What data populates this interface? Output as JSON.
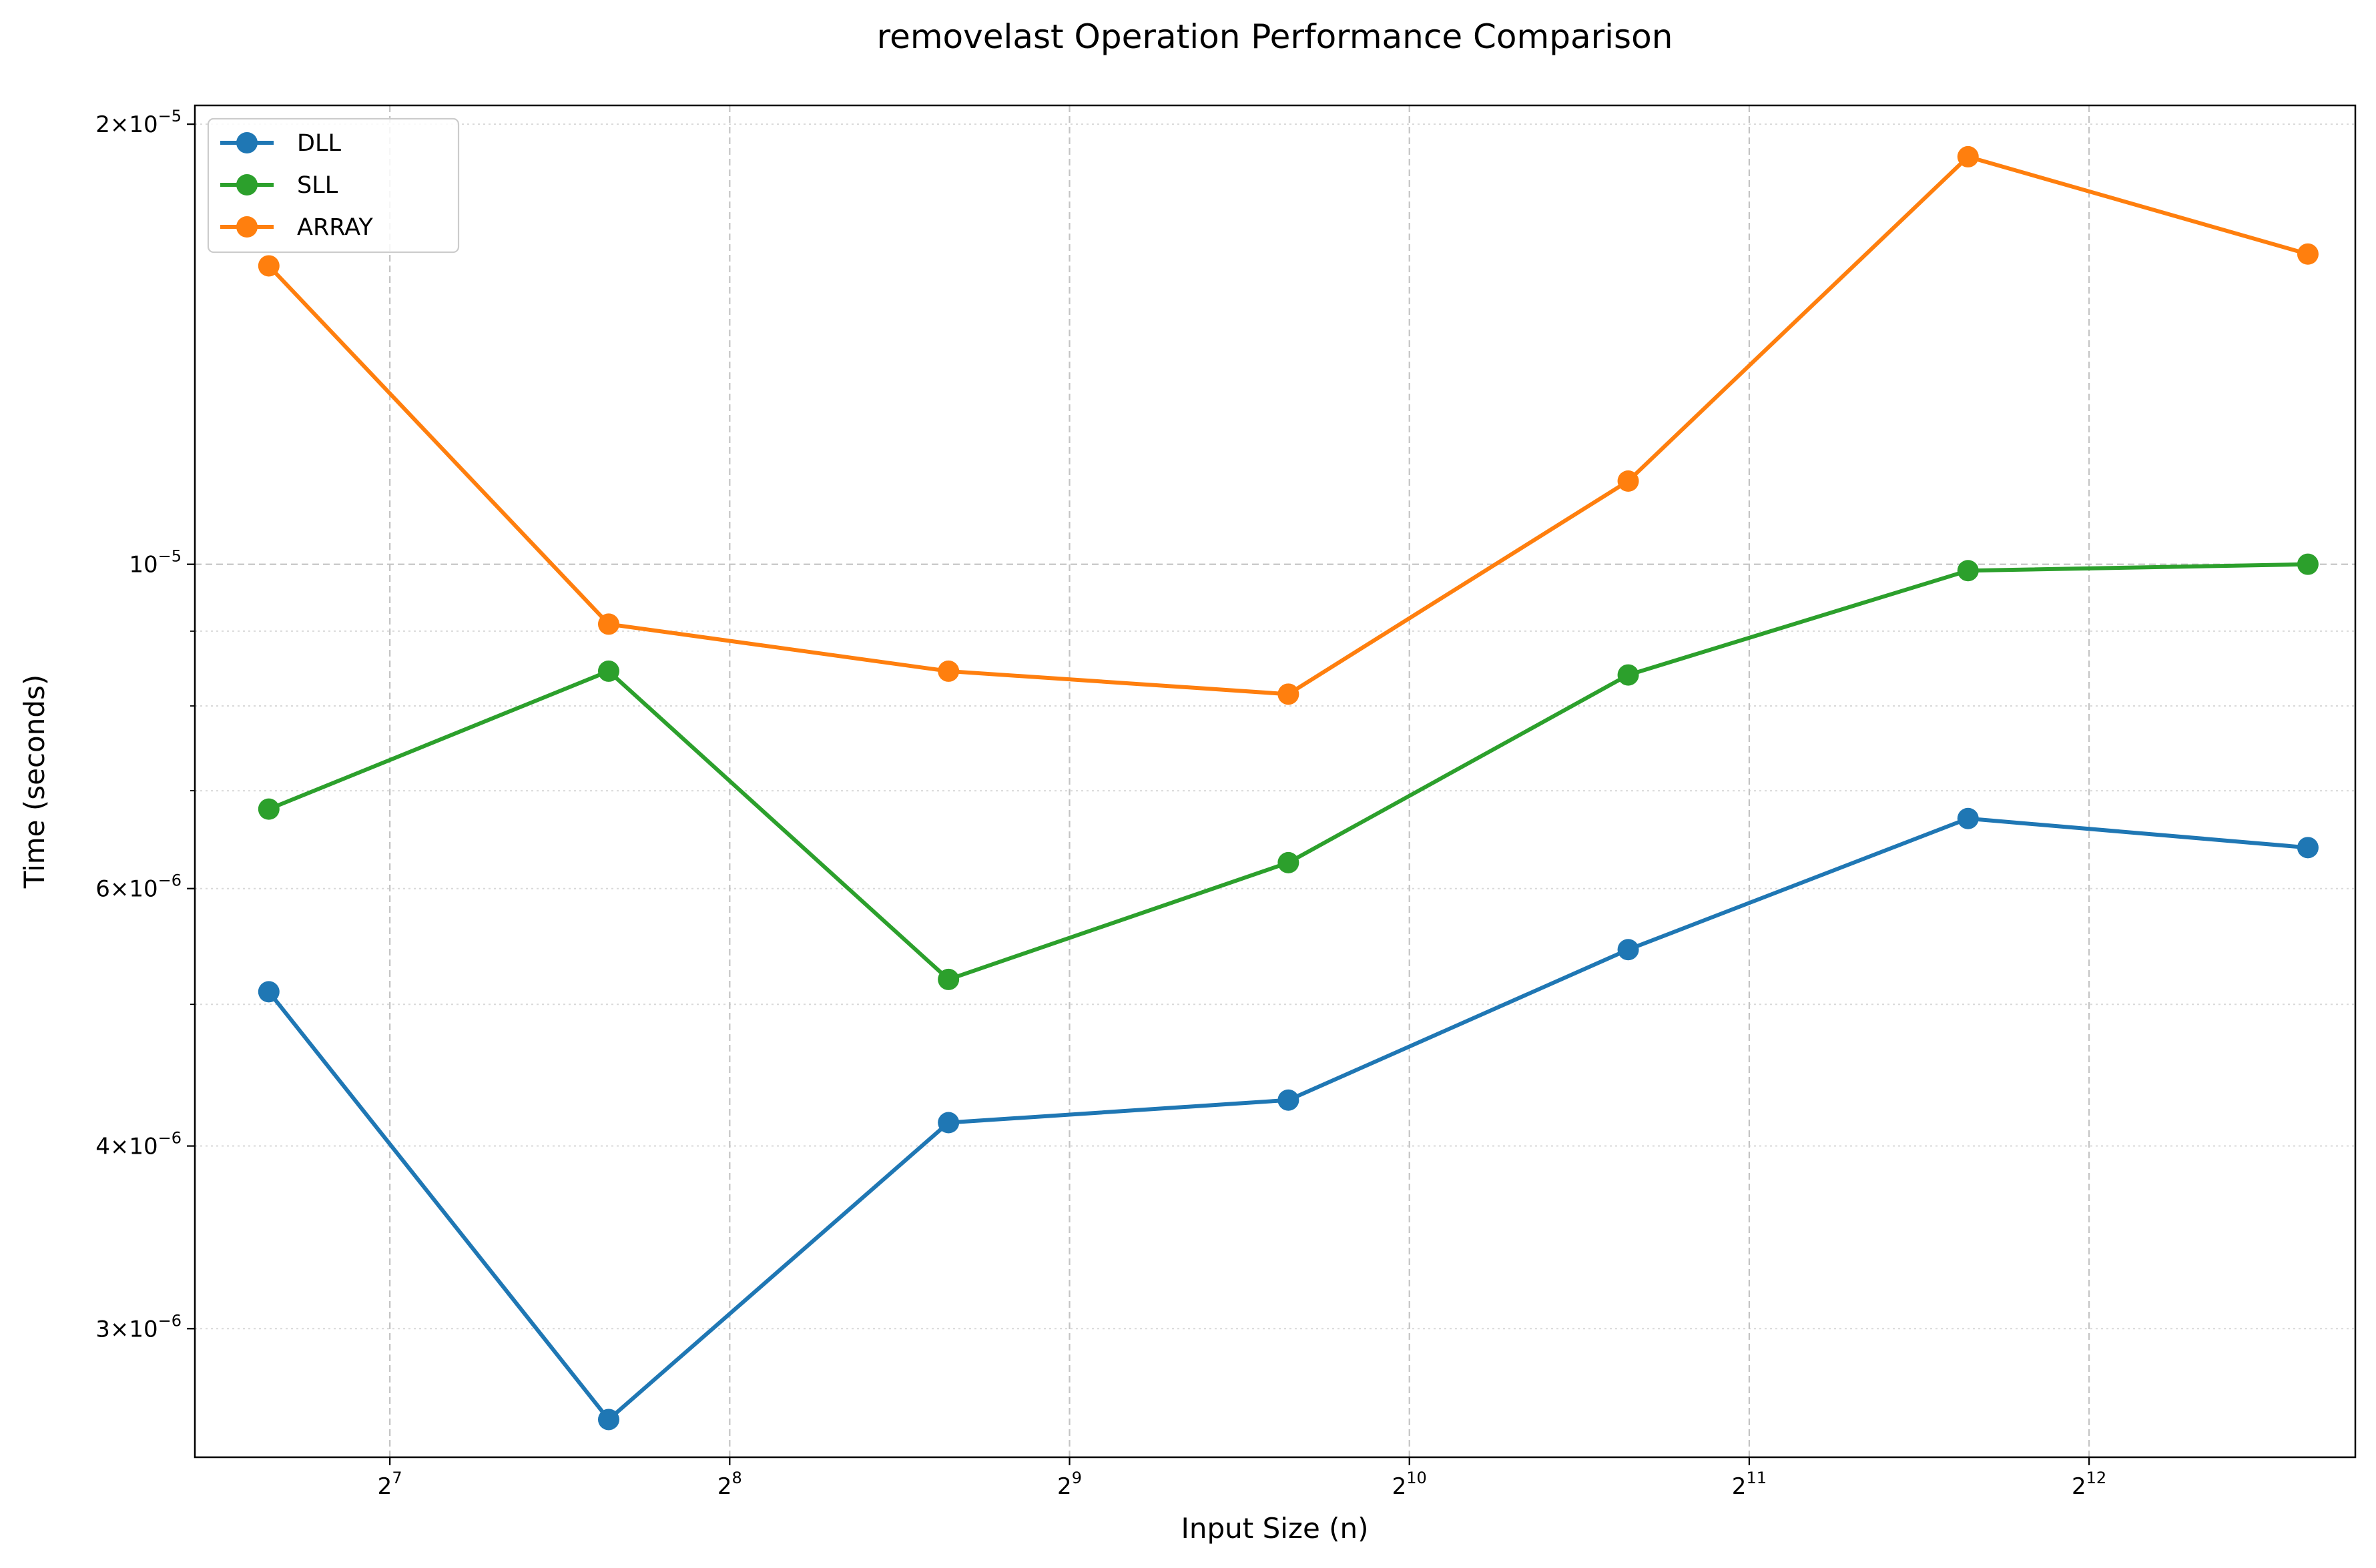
{
  "chart_data": {
    "type": "line",
    "title": "removelast Operation Performance Comparison",
    "xlabel": "Input Size (n)",
    "ylabel": "Time (seconds)",
    "xscale": "log2",
    "yscale": "log",
    "xlim": [
      86,
      7050
    ],
    "ylim": [
      2.45e-06,
      2.06e-05
    ],
    "x": [
      100,
      200,
      400,
      800,
      1600,
      3200,
      6400
    ],
    "x_ticks": [
      {
        "value": 128,
        "base": "2",
        "exp": "7"
      },
      {
        "value": 256,
        "base": "2",
        "exp": "8"
      },
      {
        "value": 512,
        "base": "2",
        "exp": "9"
      },
      {
        "value": 1024,
        "base": "2",
        "exp": "10"
      },
      {
        "value": 2048,
        "base": "2",
        "exp": "11"
      },
      {
        "value": 4096,
        "base": "2",
        "exp": "12"
      }
    ],
    "y_ticks": [
      {
        "value": 3e-06,
        "mant": "3×10",
        "exp": "−6"
      },
      {
        "value": 4e-06,
        "mant": "4×10",
        "exp": "−6"
      },
      {
        "value": 6e-06,
        "mant": "6×10",
        "exp": "−6"
      },
      {
        "value": 1e-05,
        "mant": "10",
        "exp": "−5"
      },
      {
        "value": 2e-05,
        "mant": "2×10",
        "exp": "−5"
      }
    ],
    "y_minor_ticks": [
      3e-06,
      4e-06,
      5e-06,
      6e-06,
      7e-06,
      8e-06,
      9e-06,
      2e-05
    ],
    "grid": true,
    "legend_position": "top-left",
    "series": [
      {
        "name": "DLL",
        "color": "#1f77b4",
        "values": [
          5.1e-06,
          2.6e-06,
          4.15e-06,
          4.3e-06,
          5.45e-06,
          6.7e-06,
          6.4e-06
        ]
      },
      {
        "name": "SLL",
        "color": "#2ca02c",
        "values": [
          6.8e-06,
          8.45e-06,
          5.2e-06,
          6.25e-06,
          8.4e-06,
          9.9e-06,
          1e-05
        ]
      },
      {
        "name": "ARRAY",
        "color": "#ff7f0e",
        "values": [
          1.6e-05,
          9.1e-06,
          8.45e-06,
          8.15e-06,
          1.14e-05,
          1.9e-05,
          1.63e-05
        ]
      }
    ]
  }
}
